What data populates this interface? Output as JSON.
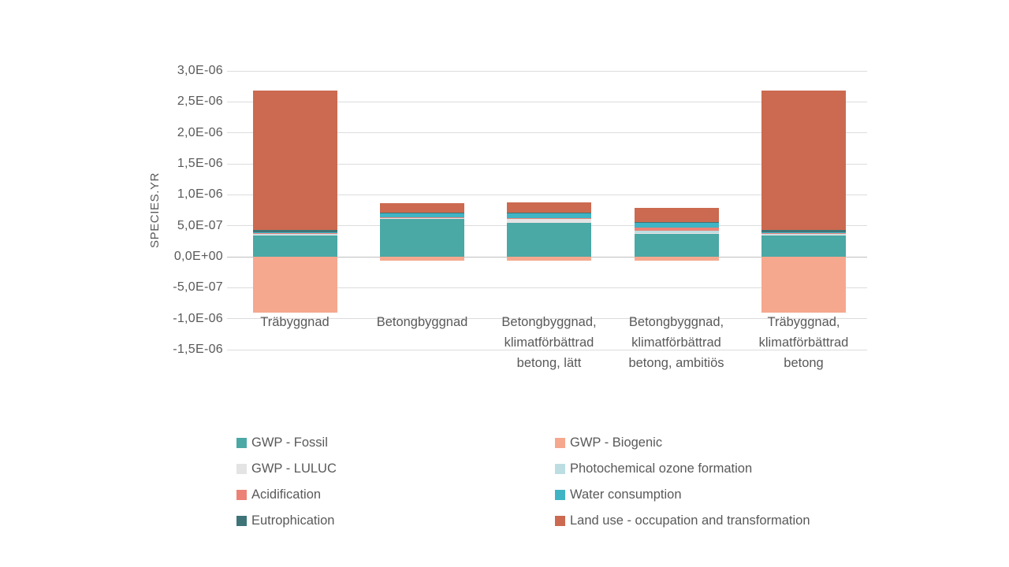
{
  "colors": {
    "background": "#FFFFFF",
    "text": "#595959",
    "gridline": "#DCDCDC",
    "zero_line": "#BFBFBF"
  },
  "chart_data": {
    "type": "bar",
    "stacked": true,
    "title": "",
    "xlabel": "",
    "ylabel": "SPECIES.YR",
    "ylim": [
      -1.5e-06,
      3e-06
    ],
    "grid": true,
    "legend_position": "bottom, two columns",
    "yticks": [
      {
        "value": 3e-06,
        "label": "3,0E-06"
      },
      {
        "value": 2.5e-06,
        "label": "2,5E-06"
      },
      {
        "value": 2e-06,
        "label": "2,0E-06"
      },
      {
        "value": 1.5e-06,
        "label": "1,5E-06"
      },
      {
        "value": 1e-06,
        "label": "1,0E-06"
      },
      {
        "value": 5e-07,
        "label": "5,0E-07"
      },
      {
        "value": 0,
        "label": "0,0E+00"
      },
      {
        "value": -5e-07,
        "label": "-5,0E-07"
      },
      {
        "value": -1e-06,
        "label": "-1,0E-06"
      },
      {
        "value": -1.5e-06,
        "label": "-1,5E-06"
      }
    ],
    "categories": [
      "Träbyggnad",
      "Betongbyggnad",
      "Betongbyggnad, klimatförbättrad betong, lätt",
      "Betongbyggnad, klimatförbättrad betong, ambitiös",
      "Träbyggnad, klimatförbättrad betong"
    ],
    "series": [
      {
        "name": "GWP - Fossil",
        "color": "#4AA8A5",
        "values": [
          3.5e-07,
          6.1e-07,
          5.45e-07,
          3.8e-07,
          3.5e-07
        ]
      },
      {
        "name": "GWP - Biogenic",
        "color": "#F5A88E",
        "values": [
          -9e-07,
          -6e-08,
          -6e-08,
          -6e-08,
          -9e-07
        ]
      },
      {
        "name": "GWP - LULUC",
        "color": "#E4E4E4",
        "values": [
          5e-09,
          8e-09,
          6.3e-08,
          5e-09,
          5e-09
        ]
      },
      {
        "name": "Photochemical ozone formation",
        "color": "#BCDEE2",
        "values": [
          2.5e-08,
          1.5e-08,
          1e-08,
          3.8e-08,
          2.5e-08
        ]
      },
      {
        "name": "Acidification",
        "color": "#EC8276",
        "values": [
          4e-09,
          6e-09,
          6e-09,
          5e-08,
          4e-09
        ]
      },
      {
        "name": "Water consumption",
        "color": "#3FB4C4",
        "values": [
          5e-09,
          6.5e-08,
          7.5e-08,
          8e-08,
          5e-09
        ]
      },
      {
        "name": "Eutrophication",
        "color": "#3E7478",
        "values": [
          3.8e-08,
          1e-08,
          1e-08,
          1e-08,
          3.8e-08
        ]
      },
      {
        "name": "Land use - occupation and transformation",
        "color": "#CB6A50",
        "values": [
          2.26e-06,
          1.5e-07,
          1.7e-07,
          2.2e-07,
          2.26e-06
        ]
      }
    ]
  }
}
